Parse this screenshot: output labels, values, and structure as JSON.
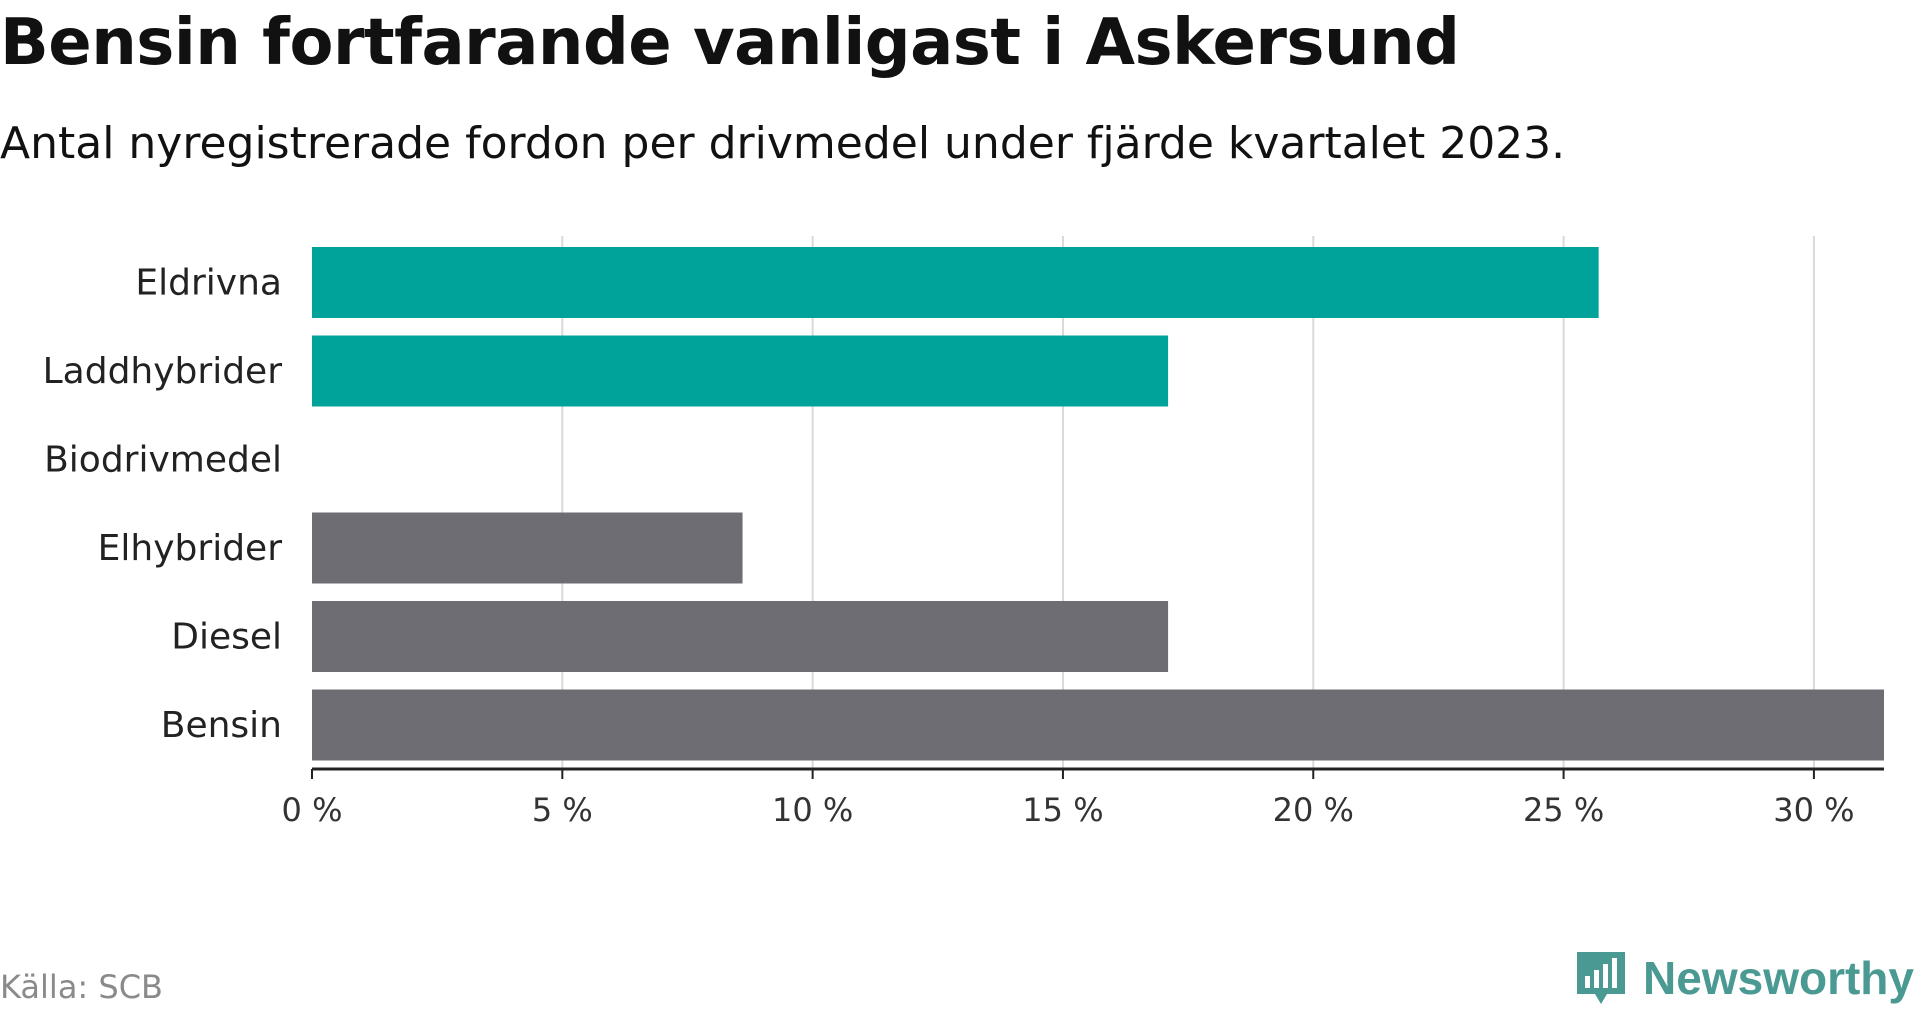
{
  "title": "Bensin fortfarande vanligast i Askersund",
  "subtitle": "Antal nyregistrerade fordon per drivmedel under fjärde kvartalet 2023.",
  "source": "Källa: SCB",
  "brand": {
    "name": "Newsworthy",
    "icon": "newsworthy-logo-icon",
    "color": "#4a9a93"
  },
  "colors": {
    "green": "#00a39a",
    "gray": "#6e6d74",
    "grid": "#d9d9d9",
    "axis": "#222222"
  },
  "chart_data": {
    "type": "bar",
    "orientation": "horizontal",
    "categories": [
      "Eldrivna",
      "Laddhybrider",
      "Biodrivmedel",
      "Elhybrider",
      "Diesel",
      "Bensin"
    ],
    "values": [
      25.7,
      17.1,
      0,
      8.6,
      17.1,
      31.4
    ],
    "bar_colors": [
      "green",
      "green",
      "gray",
      "gray",
      "gray",
      "gray"
    ],
    "xlim": [
      0,
      31.4
    ],
    "xticks": [
      0,
      5,
      10,
      15,
      20,
      25,
      30
    ],
    "tick_labels": [
      "0 %",
      "5 %",
      "10 %",
      "15 %",
      "20 %",
      "25 %",
      "30 %"
    ],
    "grid": true,
    "title": "Bensin fortfarande vanligast i Askersund",
    "xlabel": "",
    "ylabel": ""
  }
}
